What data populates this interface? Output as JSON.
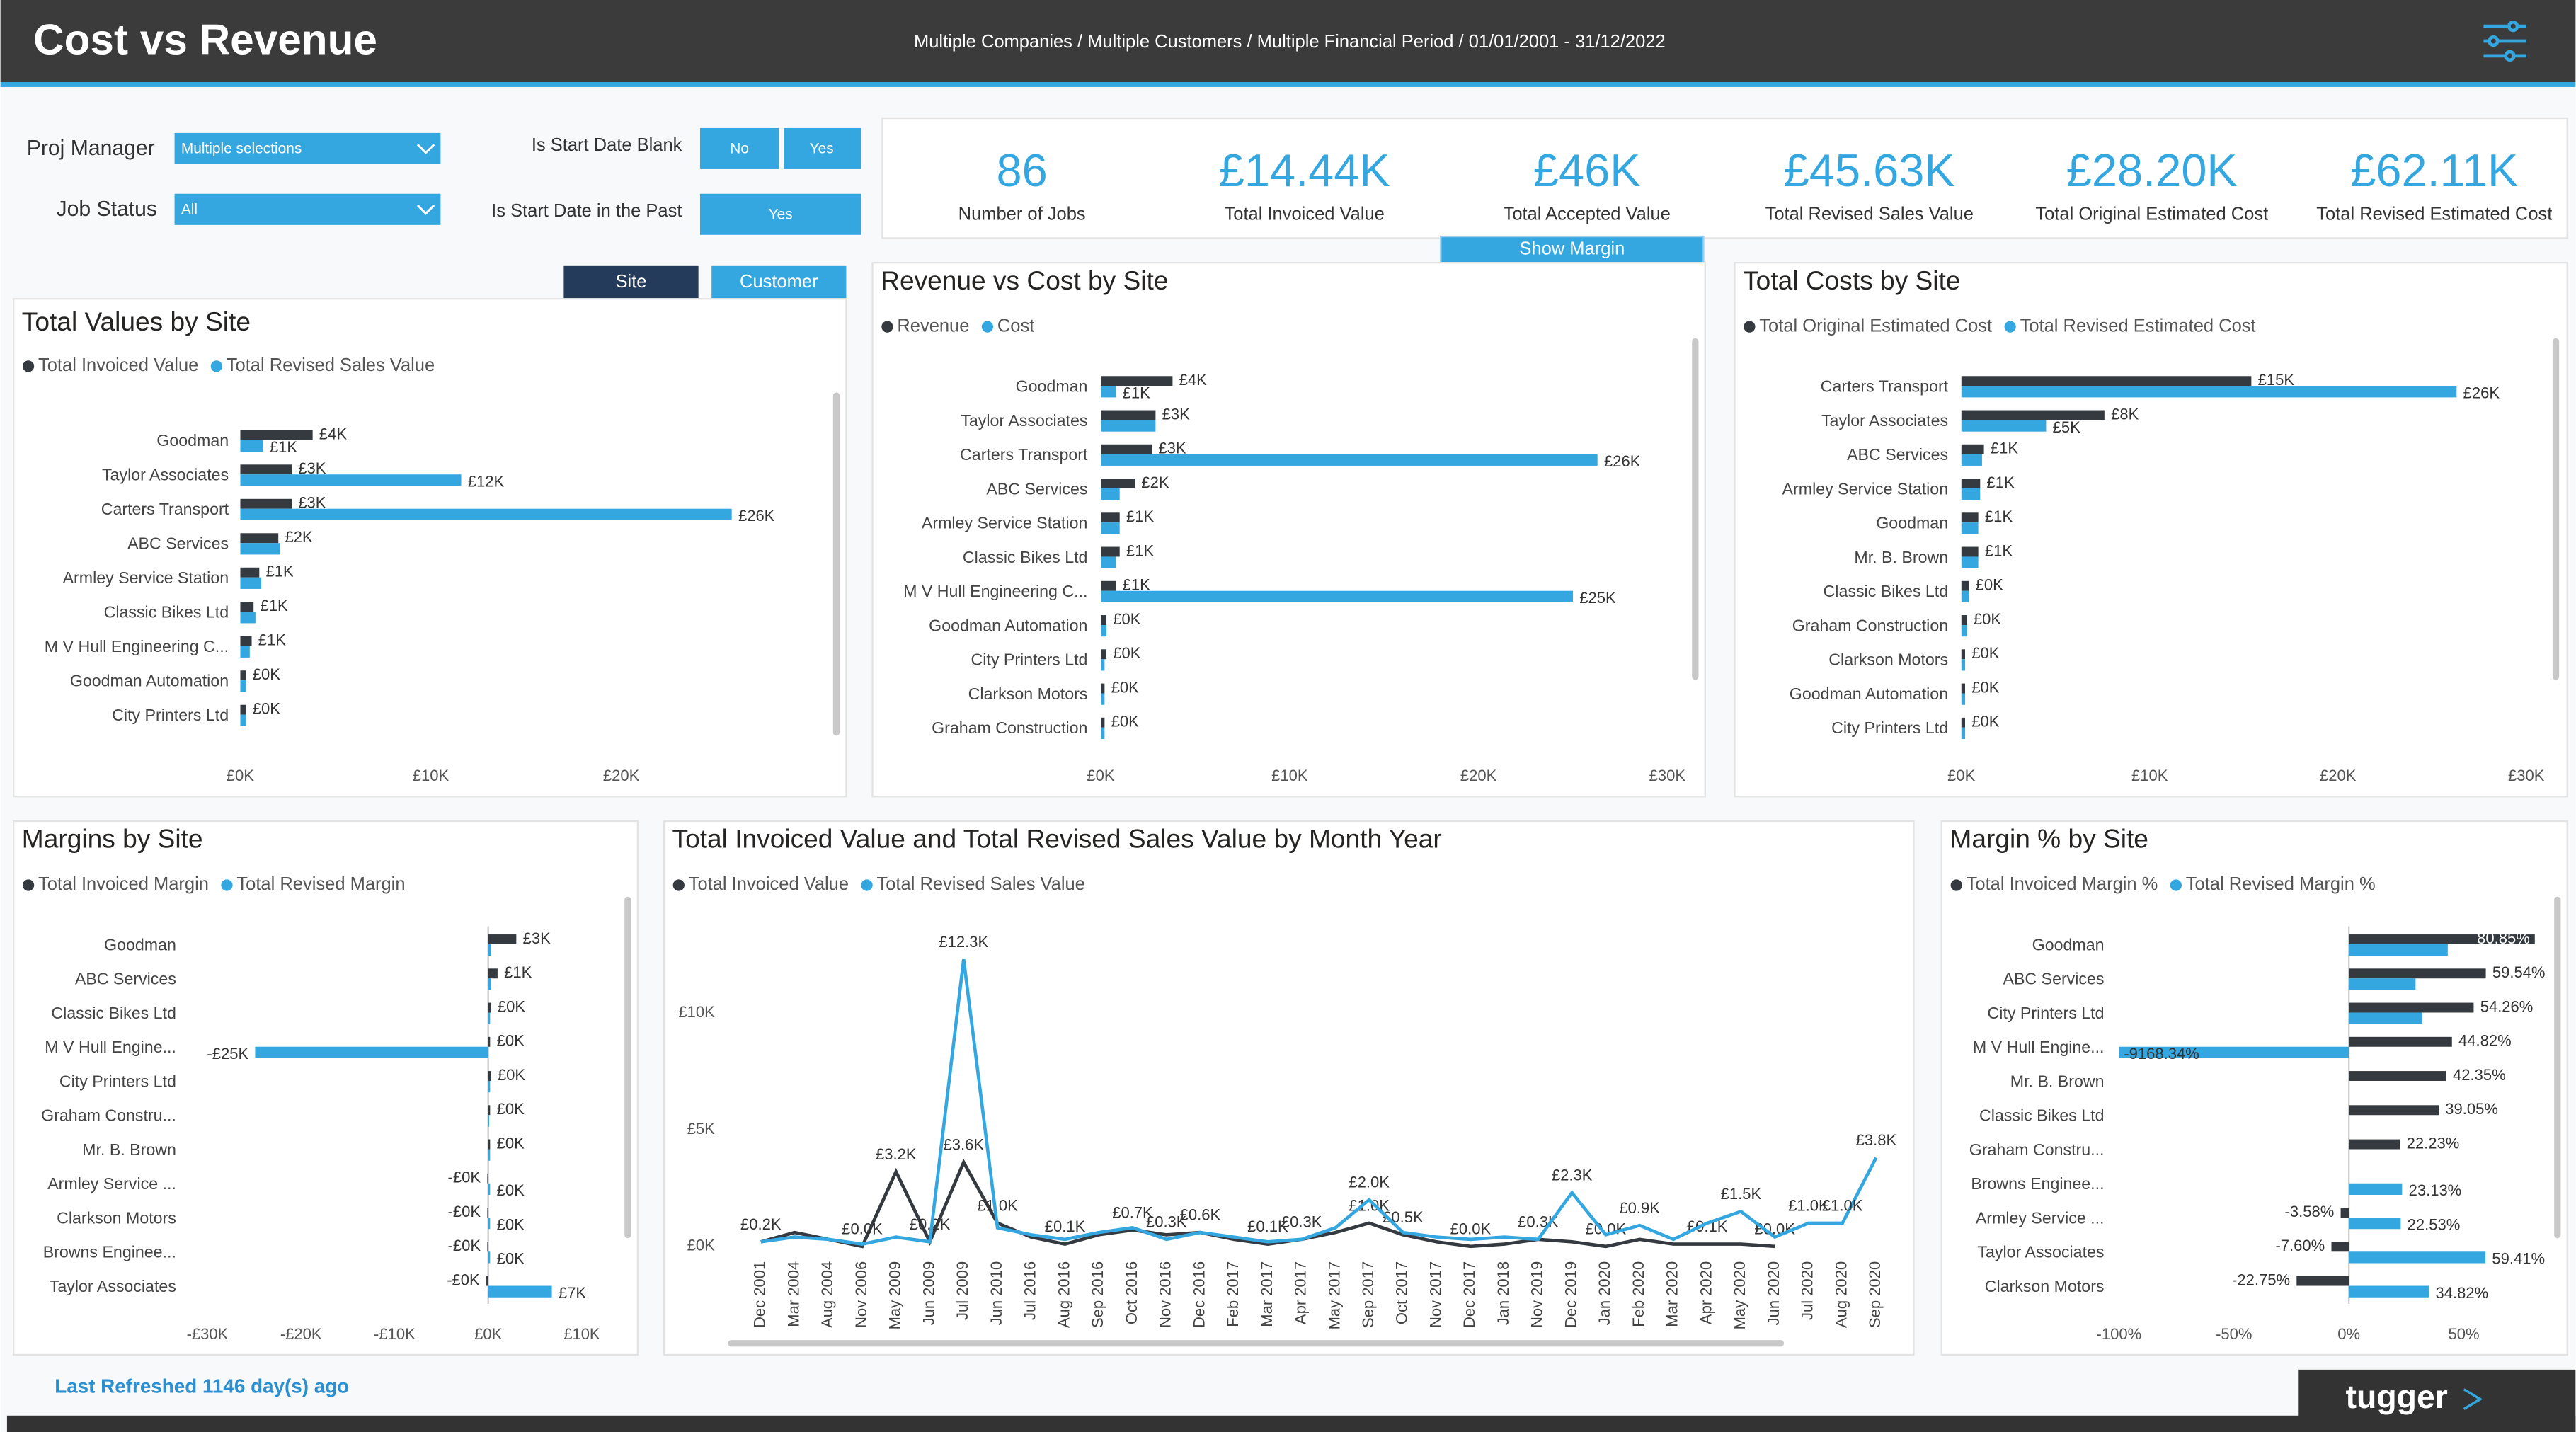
{
  "header": {
    "title": "Cost vs Revenue",
    "subtitle": "Multiple Companies / Multiple Customers / Multiple  Financial Period / 01/01/2001 - 31/12/2022"
  },
  "filters": {
    "proj_manager": {
      "label": "Proj Manager",
      "value": "Multiple selections"
    },
    "job_status": {
      "label": "Job Status",
      "value": "All"
    },
    "start_date_blank": {
      "label": "Is Start Date Blank",
      "options": [
        "No",
        "Yes"
      ]
    },
    "start_date_past": {
      "label": "Is Start Date in the Past",
      "options": [
        "Yes"
      ]
    }
  },
  "buttons": [
    "Site",
    "Customer",
    "Show Margin"
  ],
  "kpis": [
    {
      "value": 86,
      "label": "Number of Jobs"
    },
    {
      "value": "£14.44K",
      "label": "Total Invoiced Value"
    },
    {
      "value": "£46K",
      "label": "Total Accepted Value"
    },
    {
      "value": "£45.63K",
      "label": "Total Revised Sales Value"
    },
    {
      "value": "£28.20K",
      "label": "Total Original Estimated Cost"
    },
    {
      "value": "£62.11K",
      "label": "Total Revised Estimated Cost"
    }
  ],
  "footer": {
    "refreshed": "Last Refreshed 1146 day(s) ago",
    "logo": "tugger"
  },
  "chart_data": [
    {
      "type": "hbar",
      "title": "Total Values by Site",
      "categories": [
        "Goodman",
        "Taylor Associates",
        "Carters Transport",
        "ABC Services",
        "Armley Service Station",
        "Classic Bikes Ltd",
        "M V Hull Engineering C...",
        "Goodman Automation",
        "City Printers Ltd"
      ],
      "series": [
        {
          "name": "Total Invoiced Value",
          "color": "#343a3f",
          "values": [
            3.8,
            2.7,
            2.7,
            2.0,
            1.0,
            0.7,
            0.6,
            0.3,
            0.3
          ],
          "value_labels": [
            "£4K",
            "£3K",
            "£3K",
            "£2K",
            "£1K",
            "£1K",
            "£1K",
            "£0K",
            "£0K"
          ]
        },
        {
          "name": "Total Revised Sales Value",
          "color": "#35a7e0",
          "values": [
            1.2,
            11.6,
            25.8,
            2.1,
            1.1,
            0.8,
            0.5,
            0.3,
            0.3
          ],
          "value_labels": [
            "£1K",
            "£12K",
            "£26K",
            null,
            null,
            null,
            null,
            null,
            null
          ]
        }
      ],
      "xlim": [
        0,
        30
      ],
      "xticks": [
        {
          "value": 0,
          "label": "£0K"
        },
        {
          "value": 10,
          "label": "£10K"
        },
        {
          "value": 20,
          "label": "£20K"
        }
      ]
    },
    {
      "type": "hbar",
      "title": "Revenue vs Cost by Site",
      "categories": [
        "Goodman",
        "Taylor Associates",
        "Carters Transport",
        "ABC Services",
        "Armley Service Station",
        "Classic Bikes Ltd",
        "M V Hull Engineering C...",
        "Goodman Automation",
        "City Printers Ltd",
        "Clarkson Motors",
        "Graham Construction"
      ],
      "series": [
        {
          "name": "Revenue",
          "color": "#343a3f",
          "values": [
            3.8,
            2.9,
            2.7,
            1.8,
            1.0,
            1.0,
            0.8,
            0.3,
            0.3,
            0.2,
            0.2
          ],
          "value_labels": [
            "£4K",
            "£3K",
            "£3K",
            "£2K",
            "£1K",
            "£1K",
            "£1K",
            "£0K",
            "£0K",
            "£0K",
            "£0K"
          ]
        },
        {
          "name": "Cost",
          "color": "#35a7e0",
          "values": [
            0.8,
            2.9,
            26.3,
            1.0,
            1.0,
            0.8,
            25.0,
            0.3,
            0.2,
            0.2,
            0.2
          ],
          "value_labels": [
            "£1K",
            null,
            "£26K",
            null,
            null,
            null,
            "£25K",
            null,
            null,
            null,
            null
          ]
        }
      ],
      "xlim": [
        0,
        30
      ],
      "xticks": [
        {
          "value": 0,
          "label": "£0K"
        },
        {
          "value": 10,
          "label": "£10K"
        },
        {
          "value": 20,
          "label": "£20K"
        },
        {
          "value": 30,
          "label": "£30K"
        }
      ]
    },
    {
      "type": "hbar",
      "title": "Total Costs by Site",
      "categories": [
        "Carters Transport",
        "Taylor Associates",
        "ABC Services",
        "Armley Service Station",
        "Goodman",
        "Mr. B. Brown",
        "Classic Bikes Ltd",
        "Graham Construction",
        "Clarkson Motors",
        "Goodman Automation",
        "City Printers Ltd"
      ],
      "series": [
        {
          "name": "Total Original Estimated Cost",
          "color": "#343a3f",
          "values": [
            15.4,
            7.6,
            1.2,
            1.0,
            0.9,
            0.9,
            0.4,
            0.3,
            0.2,
            0.2,
            0.2
          ],
          "value_labels": [
            "£15K",
            "£8K",
            "£1K",
            "£1K",
            "£1K",
            "£1K",
            "£0K",
            "£0K",
            "£0K",
            "£0K",
            "£0K"
          ]
        },
        {
          "name": "Total Revised Estimated Cost",
          "color": "#35a7e0",
          "values": [
            26.3,
            4.5,
            1.1,
            1.0,
            0.9,
            0.9,
            0.4,
            0.3,
            0.2,
            0.2,
            0.2
          ],
          "value_labels": [
            "£26K",
            "£5K",
            null,
            null,
            null,
            null,
            null,
            null,
            null,
            null,
            null
          ]
        }
      ],
      "xlim": [
        0,
        30
      ],
      "xticks": [
        {
          "value": 0,
          "label": "£0K"
        },
        {
          "value": 10,
          "label": "£10K"
        },
        {
          "value": 20,
          "label": "£20K"
        },
        {
          "value": 30,
          "label": "£30K"
        }
      ]
    },
    {
      "type": "hbar",
      "title": "Margins by Site",
      "categories": [
        "Goodman",
        "ABC Services",
        "Classic Bikes Ltd",
        "M V Hull Engine...",
        "City Printers Ltd",
        "Graham Constru...",
        "Mr. B. Brown",
        "Armley Service ...",
        "Clarkson Motors",
        "Browns Enginee...",
        "Taylor Associates"
      ],
      "series": [
        {
          "name": "Total Invoiced Margin",
          "color": "#343a3f",
          "values": [
            3.0,
            1.0,
            0.3,
            0.2,
            0.3,
            0.2,
            0.2,
            -0.1,
            -0.1,
            -0.1,
            -0.2
          ],
          "value_labels": [
            "£3K",
            "£1K",
            "£0K",
            "£0K",
            "£0K",
            "£0K",
            "£0K",
            "-£0K",
            "-£0K",
            "-£0K",
            "-£0K"
          ]
        },
        {
          "name": "Total Revised Margin",
          "color": "#35a7e0",
          "values": [
            0.3,
            0.3,
            0.2,
            -24.9,
            0.2,
            0.1,
            0.2,
            0.2,
            0.2,
            0.2,
            6.8
          ],
          "value_labels": [
            null,
            null,
            null,
            "-£25K",
            null,
            null,
            null,
            "£0K",
            "£0K",
            "£0K",
            "£7K"
          ]
        }
      ],
      "xlim": [
        -30,
        10
      ],
      "xticks": [
        {
          "value": -30,
          "label": "-£30K"
        },
        {
          "value": -20,
          "label": "-£20K"
        },
        {
          "value": -10,
          "label": "-£10K"
        },
        {
          "value": 0,
          "label": "£0K"
        },
        {
          "value": 10,
          "label": "£10K"
        }
      ]
    },
    {
      "type": "line",
      "title": "Total Invoiced Value and Total Revised Sales Value by Month Year",
      "categories": [
        "Dec 2001",
        "Mar 2004",
        "Aug 2004",
        "Nov 2006",
        "May 2009",
        "Jun 2009",
        "Jul 2009",
        "Jun 2010",
        "Jul 2016",
        "Aug 2016",
        "Sep 2016",
        "Oct 2016",
        "Nov 2016",
        "Dec 2016",
        "Feb 2017",
        "Mar 2017",
        "Apr 2017",
        "May 2017",
        "Sep 2017",
        "Oct 2017",
        "Nov 2017",
        "Dec 2017",
        "Jan 2018",
        "Nov 2019",
        "Dec 2019",
        "Jan 2020",
        "Feb 2020",
        "Mar 2020",
        "Apr 2020",
        "May 2020",
        "Jun 2020",
        "Jul 2020",
        "Aug 2020",
        "Sep 2020"
      ],
      "series": [
        {
          "name": "Total Invoiced Value",
          "color": "#343a3f",
          "values": [
            0.2,
            0.6,
            0.3,
            0.0,
            3.2,
            0.2,
            3.6,
            1.0,
            0.4,
            0.1,
            0.5,
            0.7,
            0.5,
            0.6,
            0.3,
            0.1,
            0.3,
            0.6,
            1.0,
            0.5,
            0.2,
            0.0,
            0.1,
            0.3,
            0.2,
            0.0,
            0.3,
            0.1,
            0.1,
            0.1,
            0.0,
            null,
            null,
            null
          ],
          "value_labels": [
            "£0.2K",
            null,
            null,
            "£0.0K",
            "£3.2K",
            "£0.2K",
            "£3.6K",
            "£1.0K",
            null,
            "£0.1K",
            null,
            "£0.7K",
            null,
            "£0.6K",
            null,
            "£0.1K",
            null,
            null,
            "£1.0K",
            "£0.5K",
            null,
            "£0.0K",
            null,
            "£0.3K",
            null,
            "£0.0K",
            null,
            null,
            "£0.1K",
            null,
            "£0.0K",
            null,
            null,
            null
          ]
        },
        {
          "name": "Total Revised Sales Value",
          "color": "#35a7e0",
          "values": [
            0.2,
            0.4,
            0.3,
            0.1,
            0.4,
            0.2,
            12.3,
            0.8,
            0.5,
            0.3,
            0.6,
            0.8,
            0.3,
            0.6,
            0.4,
            0.2,
            0.3,
            0.8,
            2.0,
            0.6,
            0.4,
            0.3,
            0.4,
            0.3,
            2.3,
            0.5,
            0.9,
            0.3,
            1.0,
            1.5,
            0.4,
            1.0,
            1.0,
            3.8
          ],
          "value_labels": [
            null,
            null,
            null,
            null,
            null,
            null,
            "£12.3K",
            null,
            null,
            null,
            null,
            null,
            "£0.3K",
            null,
            null,
            null,
            "£0.3K",
            null,
            "£2.0K",
            null,
            null,
            null,
            null,
            null,
            "£2.3K",
            null,
            "£0.9K",
            null,
            null,
            "£1.5K",
            null,
            "£1.0K",
            "£1.0K",
            "£3.8K"
          ]
        }
      ],
      "ylim": [
        0,
        14
      ],
      "yticks": [
        {
          "value": 0,
          "label": "£0K"
        },
        {
          "value": 5,
          "label": "£5K"
        },
        {
          "value": 10,
          "label": "£10K"
        }
      ]
    },
    {
      "type": "hbar",
      "title": "Margin % by Site",
      "categories": [
        "Goodman",
        "ABC Services",
        "City Printers Ltd",
        "M V Hull Engine...",
        "Mr. B. Brown",
        "Classic Bikes Ltd",
        "Graham Constru...",
        "Browns Enginee...",
        "Armley Service ...",
        "Taylor Associates",
        "Clarkson Motors"
      ],
      "series": [
        {
          "name": "Total Invoiced Margin %",
          "color": "#343a3f",
          "values": [
            80.85,
            59.54,
            54.26,
            44.82,
            42.35,
            39.05,
            22.23,
            null,
            -3.58,
            -7.6,
            -22.75
          ],
          "value_labels": [
            "80.85%",
            "59.54%",
            "54.26%",
            "44.82%",
            "42.35%",
            "39.05%",
            "22.23%",
            null,
            "-3.58%",
            "-7.60%",
            "-22.75%"
          ]
        },
        {
          "name": "Total Revised Margin %",
          "color": "#35a7e0",
          "values": [
            43,
            29,
            32,
            -9168.34,
            null,
            null,
            null,
            23.13,
            22.53,
            59.41,
            34.82
          ],
          "value_labels": [
            null,
            null,
            null,
            "-9168.34%",
            null,
            null,
            null,
            "23.13%",
            "22.53%",
            "59.41%",
            "34.82%"
          ]
        }
      ],
      "xlim": [
        -100,
        90
      ],
      "xticks": [
        {
          "value": -100,
          "label": "-100%"
        },
        {
          "value": -50,
          "label": "-50%"
        },
        {
          "value": 0,
          "label": "0%"
        },
        {
          "value": 50,
          "label": "50%"
        }
      ]
    }
  ]
}
